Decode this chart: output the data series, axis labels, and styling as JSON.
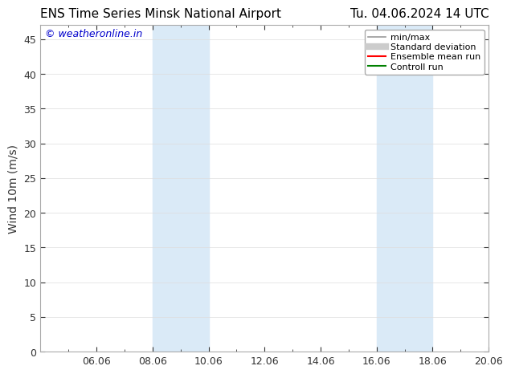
{
  "title_left": "ENS Time Series Minsk National Airport",
  "title_right": "Tu. 04.06.2024 14 UTC",
  "ylabel": "Wind 10m (m/s)",
  "ylim": [
    0,
    47
  ],
  "yticks": [
    0,
    5,
    10,
    15,
    20,
    25,
    30,
    35,
    40,
    45
  ],
  "xlim": [
    0,
    16
  ],
  "xtick_labels": [
    "06.06",
    "08.06",
    "10.06",
    "12.06",
    "14.06",
    "16.06",
    "18.06",
    "20.06"
  ],
  "xtick_positions": [
    2,
    4,
    6,
    8,
    10,
    12,
    14,
    16
  ],
  "shade_regions": [
    {
      "x_start": 4,
      "x_end": 6
    },
    {
      "x_start": 12,
      "x_end": 14
    }
  ],
  "shade_color": "#daeaf7",
  "background_color": "#ffffff",
  "plot_bg_color": "#ffffff",
  "watermark_text": "© weatheronline.in",
  "watermark_color": "#0000cc",
  "legend_items": [
    {
      "label": "min/max",
      "color": "#999999",
      "lw": 1.2,
      "style": "solid"
    },
    {
      "label": "Standard deviation",
      "color": "#cccccc",
      "lw": 6,
      "style": "solid"
    },
    {
      "label": "Ensemble mean run",
      "color": "#ff0000",
      "lw": 1.5,
      "style": "solid"
    },
    {
      "label": "Controll run",
      "color": "#008000",
      "lw": 1.5,
      "style": "solid"
    }
  ],
  "spine_color": "#aaaaaa",
  "tick_color": "#333333",
  "grid_color": "#dddddd",
  "font_size_title": 11,
  "font_size_axis": 10,
  "font_size_tick": 9,
  "font_size_legend": 8,
  "font_size_watermark": 9
}
